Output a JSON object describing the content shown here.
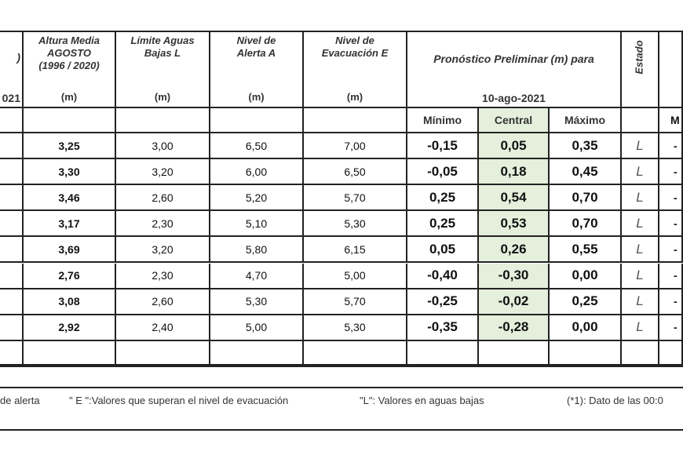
{
  "header": {
    "left_partial": [
      ")",
      "021"
    ],
    "columns": [
      {
        "lines": [
          "Altura Media",
          "AGOSTO",
          "(1996 / 2020)"
        ],
        "unit": "(m)"
      },
      {
        "lines": [
          "Límite Aguas",
          "Bajas L"
        ],
        "unit": "(m)"
      },
      {
        "lines": [
          "Nivel de",
          "Alerta A"
        ],
        "unit": "(m)"
      },
      {
        "lines": [
          "Nivel de",
          "Evacuación  E"
        ],
        "unit": "(m)"
      }
    ],
    "forecast": {
      "title": "Pronóstico Preliminar (m) para",
      "date": "10-ago-2021",
      "subheaders": [
        "Mínimo",
        "Central",
        "Máximo"
      ]
    },
    "estado": "Estado",
    "right_partial": "M"
  },
  "rows": [
    [
      "3,25",
      "3,00",
      "6,50",
      "7,00",
      "-0,15",
      "0,05",
      "0,35",
      "L",
      "-"
    ],
    [
      "3,30",
      "3,20",
      "6,00",
      "6,50",
      "-0,05",
      "0,18",
      "0,45",
      "L",
      "-"
    ],
    [
      "3,46",
      "2,60",
      "5,20",
      "5,70",
      "0,25",
      "0,54",
      "0,70",
      "L",
      "-"
    ],
    [
      "3,17",
      "2,30",
      "5,10",
      "5,30",
      "0,25",
      "0,53",
      "0,70",
      "L",
      "-"
    ],
    [
      "3,69",
      "3,20",
      "5,80",
      "6,15",
      "0,05",
      "0,26",
      "0,55",
      "L",
      "-"
    ],
    [
      "2,76",
      "2,30",
      "4,70",
      "5,00",
      "-0,40",
      "-0,30",
      "0,00",
      "L",
      "-"
    ],
    [
      "3,08",
      "2,60",
      "5,30",
      "5,70",
      "-0,25",
      "-0,02",
      "0,25",
      "L",
      "-"
    ],
    [
      "2,92",
      "2,40",
      "5,00",
      "5,30",
      "-0,35",
      "-0,28",
      "0,00",
      "L",
      "-"
    ]
  ],
  "notes": [
    "de alerta",
    "\" E \":Valores que superan el nivel de evacuación",
    "\"L\": Valores en aguas bajas",
    "(*1): Dato de las 00:0"
  ]
}
